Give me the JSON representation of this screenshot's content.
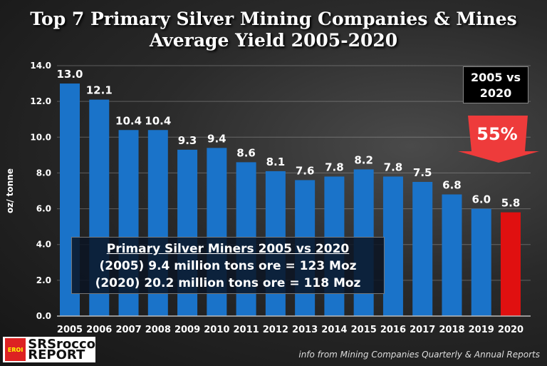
{
  "chart_data": {
    "type": "bar",
    "title": "Top 7 Primary Silver Mining Companies & Mines",
    "subtitle": "Average Yield 2005-2020",
    "ylabel": "oz/ tonne",
    "xlabel": "",
    "ylim": [
      0,
      14
    ],
    "yticks": [
      "0.0",
      "2.0",
      "4.0",
      "6.0",
      "8.0",
      "10.0",
      "12.0",
      "14.0"
    ],
    "categories": [
      "2005",
      "2006",
      "2007",
      "2008",
      "2009",
      "2010",
      "2011",
      "2012",
      "2013",
      "2014",
      "2015",
      "2016",
      "2017",
      "2018",
      "2019",
      "2020"
    ],
    "values": [
      13.0,
      12.1,
      10.4,
      10.4,
      9.3,
      9.4,
      8.6,
      8.1,
      7.6,
      7.8,
      8.2,
      7.8,
      7.5,
      6.8,
      6.0,
      5.8
    ],
    "labels": [
      "13.0",
      "12.1",
      "10.4",
      "10.4",
      "9.3",
      "9.4",
      "8.6",
      "8.1",
      "7.6",
      "7.8",
      "8.2",
      "7.8",
      "7.5",
      "6.8",
      "6.0",
      "5.8"
    ],
    "bar_color": "#1a73c9",
    "highlight_color": "#e01010",
    "grid": true
  },
  "annotation": {
    "heading": "Primary Silver Miners 2005 vs 2020",
    "line1": "(2005) 9.4 million tons ore = 123 Moz",
    "line2": "(2020) 20.2 million tons ore = 118 Moz"
  },
  "comparison": {
    "line1": "2005 vs",
    "line2": "2020",
    "decline": "55%"
  },
  "logo": {
    "line1": "SRSrocco",
    "line2": "REPORT",
    "badge": "EROI"
  },
  "source": "info from Mining Companies Quarterly & Annual Reports"
}
